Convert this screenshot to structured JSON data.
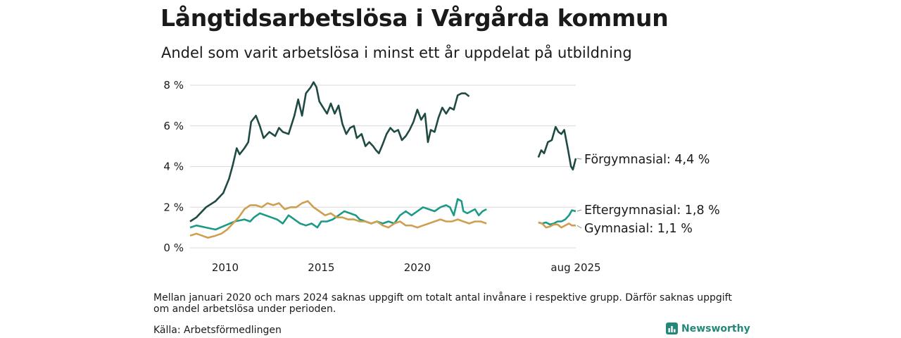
{
  "header": {
    "title": "Långtidsarbetslösa i Vårgårda kommun",
    "subtitle": "Andel som varit arbetslösa i minst ett år uppdelat på utbildning"
  },
  "footer": {
    "note": "Mellan januari 2020 och mars 2024 saknas uppgift om totalt antal invånare i respektive grupp. Därför saknas uppgift om andel arbetslösa under perioden.",
    "source": "Källa: Arbetsförmedlingen",
    "logo": "Newsworthy",
    "logo_icon": "bar-chart-icon"
  },
  "chart_data": {
    "type": "line",
    "x_tick_labels": [
      "2010",
      "2015",
      "2020",
      "aug 2025"
    ],
    "y_tick_labels": [
      "0 %",
      "2 %",
      "4 %",
      "6 %",
      "8 %"
    ],
    "ylim": [
      0,
      8
    ],
    "grid": true,
    "legend": "end-of-line labels",
    "series": [
      {
        "name": "Förgymnasial",
        "end_label": "Förgymnasial: 4,4 %",
        "color": "#1f4a44",
        "segments": [
          [
            [
              2008.17,
              1.3
            ],
            [
              2008.5,
              1.5
            ],
            [
              2009.0,
              2.0
            ],
            [
              2009.5,
              2.3
            ],
            [
              2009.9,
              2.7
            ],
            [
              2010.2,
              3.4
            ],
            [
              2010.4,
              4.1
            ],
            [
              2010.6,
              4.9
            ],
            [
              2010.75,
              4.6
            ],
            [
              2011.0,
              4.9
            ],
            [
              2011.2,
              5.2
            ],
            [
              2011.35,
              6.2
            ],
            [
              2011.6,
              6.5
            ],
            [
              2011.8,
              6.0
            ],
            [
              2012.0,
              5.4
            ],
            [
              2012.3,
              5.7
            ],
            [
              2012.6,
              5.5
            ],
            [
              2012.8,
              5.9
            ],
            [
              2013.0,
              5.7
            ],
            [
              2013.3,
              5.6
            ],
            [
              2013.6,
              6.5
            ],
            [
              2013.8,
              7.3
            ],
            [
              2014.0,
              6.5
            ],
            [
              2014.2,
              7.6
            ],
            [
              2014.45,
              7.9
            ],
            [
              2014.6,
              8.15
            ],
            [
              2014.75,
              7.9
            ],
            [
              2014.9,
              7.2
            ],
            [
              2015.1,
              6.9
            ],
            [
              2015.3,
              6.6
            ],
            [
              2015.5,
              7.1
            ],
            [
              2015.7,
              6.6
            ],
            [
              2015.9,
              7.0
            ],
            [
              2016.1,
              6.1
            ],
            [
              2016.3,
              5.6
            ],
            [
              2016.5,
              5.9
            ],
            [
              2016.7,
              6.0
            ],
            [
              2016.85,
              5.4
            ],
            [
              2017.1,
              5.6
            ],
            [
              2017.3,
              5.0
            ],
            [
              2017.5,
              5.2
            ],
            [
              2017.7,
              5.0
            ],
            [
              2017.85,
              4.8
            ],
            [
              2018.0,
              4.65
            ],
            [
              2018.2,
              5.1
            ],
            [
              2018.4,
              5.6
            ],
            [
              2018.6,
              5.9
            ],
            [
              2018.8,
              5.7
            ],
            [
              2019.0,
              5.8
            ],
            [
              2019.2,
              5.3
            ],
            [
              2019.4,
              5.5
            ],
            [
              2019.6,
              5.8
            ],
            [
              2019.8,
              6.2
            ],
            [
              2020.0,
              6.8
            ],
            [
              2020.2,
              6.3
            ],
            [
              2020.4,
              6.6
            ],
            [
              2020.55,
              5.2
            ],
            [
              2020.7,
              5.8
            ],
            [
              2020.9,
              5.7
            ],
            [
              2021.1,
              6.4
            ],
            [
              2021.3,
              6.9
            ],
            [
              2021.5,
              6.6
            ],
            [
              2021.7,
              6.9
            ],
            [
              2021.9,
              6.8
            ],
            [
              2022.1,
              7.5
            ],
            [
              2022.3,
              7.6
            ],
            [
              2022.5,
              7.6
            ],
            [
              2022.7,
              7.45
            ]
          ],
          [
            [
              2026.3,
              4.45
            ],
            [
              2026.45,
              4.8
            ],
            [
              2026.6,
              4.65
            ],
            [
              2026.8,
              5.2
            ],
            [
              2027.0,
              5.3
            ],
            [
              2027.2,
              5.95
            ],
            [
              2027.35,
              5.7
            ],
            [
              2027.5,
              5.6
            ],
            [
              2027.65,
              5.8
            ],
            [
              2027.85,
              4.8
            ],
            [
              2028.0,
              4.0
            ],
            [
              2028.1,
              3.85
            ],
            [
              2028.25,
              4.4
            ]
          ]
        ]
      },
      {
        "name": "Eftergymnasial",
        "end_label": "Eftergymnasial: 1,8 %",
        "color": "#1b9a86",
        "segments": [
          [
            [
              2008.17,
              1.0
            ],
            [
              2008.5,
              1.1
            ],
            [
              2009.0,
              1.0
            ],
            [
              2009.5,
              0.9
            ],
            [
              2010.0,
              1.1
            ],
            [
              2010.5,
              1.3
            ],
            [
              2011.0,
              1.4
            ],
            [
              2011.3,
              1.3
            ],
            [
              2011.5,
              1.5
            ],
            [
              2011.8,
              1.7
            ],
            [
              2012.1,
              1.6
            ],
            [
              2012.4,
              1.5
            ],
            [
              2012.7,
              1.4
            ],
            [
              2013.0,
              1.2
            ],
            [
              2013.3,
              1.6
            ],
            [
              2013.6,
              1.4
            ],
            [
              2013.9,
              1.2
            ],
            [
              2014.2,
              1.1
            ],
            [
              2014.5,
              1.2
            ],
            [
              2014.8,
              1.0
            ],
            [
              2015.0,
              1.3
            ],
            [
              2015.3,
              1.3
            ],
            [
              2015.6,
              1.4
            ],
            [
              2015.9,
              1.6
            ],
            [
              2016.2,
              1.8
            ],
            [
              2016.5,
              1.7
            ],
            [
              2016.8,
              1.6
            ],
            [
              2017.0,
              1.4
            ],
            [
              2017.3,
              1.3
            ],
            [
              2017.6,
              1.2
            ],
            [
              2017.9,
              1.3
            ],
            [
              2018.2,
              1.2
            ],
            [
              2018.5,
              1.3
            ],
            [
              2018.8,
              1.2
            ],
            [
              2019.1,
              1.6
            ],
            [
              2019.4,
              1.8
            ],
            [
              2019.7,
              1.6
            ],
            [
              2020.0,
              1.8
            ],
            [
              2020.3,
              2.0
            ],
            [
              2020.6,
              1.9
            ],
            [
              2020.9,
              1.8
            ],
            [
              2021.2,
              2.0
            ],
            [
              2021.5,
              2.1
            ],
            [
              2021.7,
              2.0
            ],
            [
              2021.9,
              1.6
            ],
            [
              2022.1,
              2.4
            ],
            [
              2022.3,
              2.3
            ],
            [
              2022.4,
              1.8
            ],
            [
              2022.6,
              1.7
            ],
            [
              2022.8,
              1.8
            ],
            [
              2023.0,
              1.9
            ],
            [
              2023.2,
              1.6
            ],
            [
              2023.4,
              1.8
            ],
            [
              2023.6,
              1.9
            ]
          ]
        ],
        "segments_note": "",
        "segments_2": [
          [
            2026.3,
            1.25
          ],
          [
            2026.5,
            1.2
          ],
          [
            2026.7,
            1.25
          ],
          [
            2026.9,
            1.15
          ],
          [
            2027.1,
            1.2
          ],
          [
            2027.3,
            1.3
          ],
          [
            2027.5,
            1.3
          ],
          [
            2027.7,
            1.4
          ],
          [
            2027.9,
            1.6
          ],
          [
            2028.05,
            1.85
          ],
          [
            2028.25,
            1.8
          ]
        ]
      },
      {
        "name": "Gymnasial",
        "end_label": "Gymnasial: 1,1 %",
        "color": "#cf9f50",
        "segments": [
          [
            [
              2008.17,
              0.6
            ],
            [
              2008.5,
              0.7
            ],
            [
              2008.8,
              0.6
            ],
            [
              2009.1,
              0.5
            ],
            [
              2009.5,
              0.6
            ],
            [
              2009.8,
              0.7
            ],
            [
              2010.1,
              0.9
            ],
            [
              2010.4,
              1.2
            ],
            [
              2010.7,
              1.5
            ],
            [
              2011.0,
              1.9
            ],
            [
              2011.3,
              2.1
            ],
            [
              2011.6,
              2.1
            ],
            [
              2011.9,
              2.0
            ],
            [
              2012.2,
              2.2
            ],
            [
              2012.5,
              2.1
            ],
            [
              2012.8,
              2.2
            ],
            [
              2013.1,
              1.9
            ],
            [
              2013.4,
              2.0
            ],
            [
              2013.7,
              2.0
            ],
            [
              2014.0,
              2.2
            ],
            [
              2014.3,
              2.3
            ],
            [
              2014.6,
              2.0
            ],
            [
              2014.9,
              1.8
            ],
            [
              2015.2,
              1.6
            ],
            [
              2015.5,
              1.7
            ],
            [
              2015.8,
              1.5
            ],
            [
              2016.1,
              1.5
            ],
            [
              2016.4,
              1.4
            ],
            [
              2016.7,
              1.4
            ],
            [
              2017.0,
              1.3
            ],
            [
              2017.3,
              1.3
            ],
            [
              2017.6,
              1.2
            ],
            [
              2017.9,
              1.3
            ],
            [
              2018.2,
              1.1
            ],
            [
              2018.5,
              1.0
            ],
            [
              2018.8,
              1.2
            ],
            [
              2019.1,
              1.3
            ],
            [
              2019.4,
              1.1
            ],
            [
              2019.7,
              1.1
            ],
            [
              2020.0,
              1.0
            ],
            [
              2020.3,
              1.1
            ],
            [
              2020.6,
              1.2
            ],
            [
              2020.9,
              1.3
            ],
            [
              2021.2,
              1.4
            ],
            [
              2021.5,
              1.3
            ],
            [
              2021.8,
              1.3
            ],
            [
              2022.1,
              1.4
            ],
            [
              2022.4,
              1.3
            ],
            [
              2022.7,
              1.2
            ],
            [
              2023.0,
              1.3
            ],
            [
              2023.3,
              1.3
            ],
            [
              2023.6,
              1.2
            ]
          ]
        ],
        "segments_2": [
          [
            2026.3,
            1.25
          ],
          [
            2026.5,
            1.2
          ],
          [
            2026.7,
            1.0
          ],
          [
            2026.9,
            1.05
          ],
          [
            2027.1,
            1.15
          ],
          [
            2027.3,
            1.15
          ],
          [
            2027.5,
            1.0
          ],
          [
            2027.7,
            1.1
          ],
          [
            2027.9,
            1.2
          ],
          [
            2028.05,
            1.1
          ],
          [
            2028.25,
            1.1
          ]
        ]
      }
    ]
  }
}
